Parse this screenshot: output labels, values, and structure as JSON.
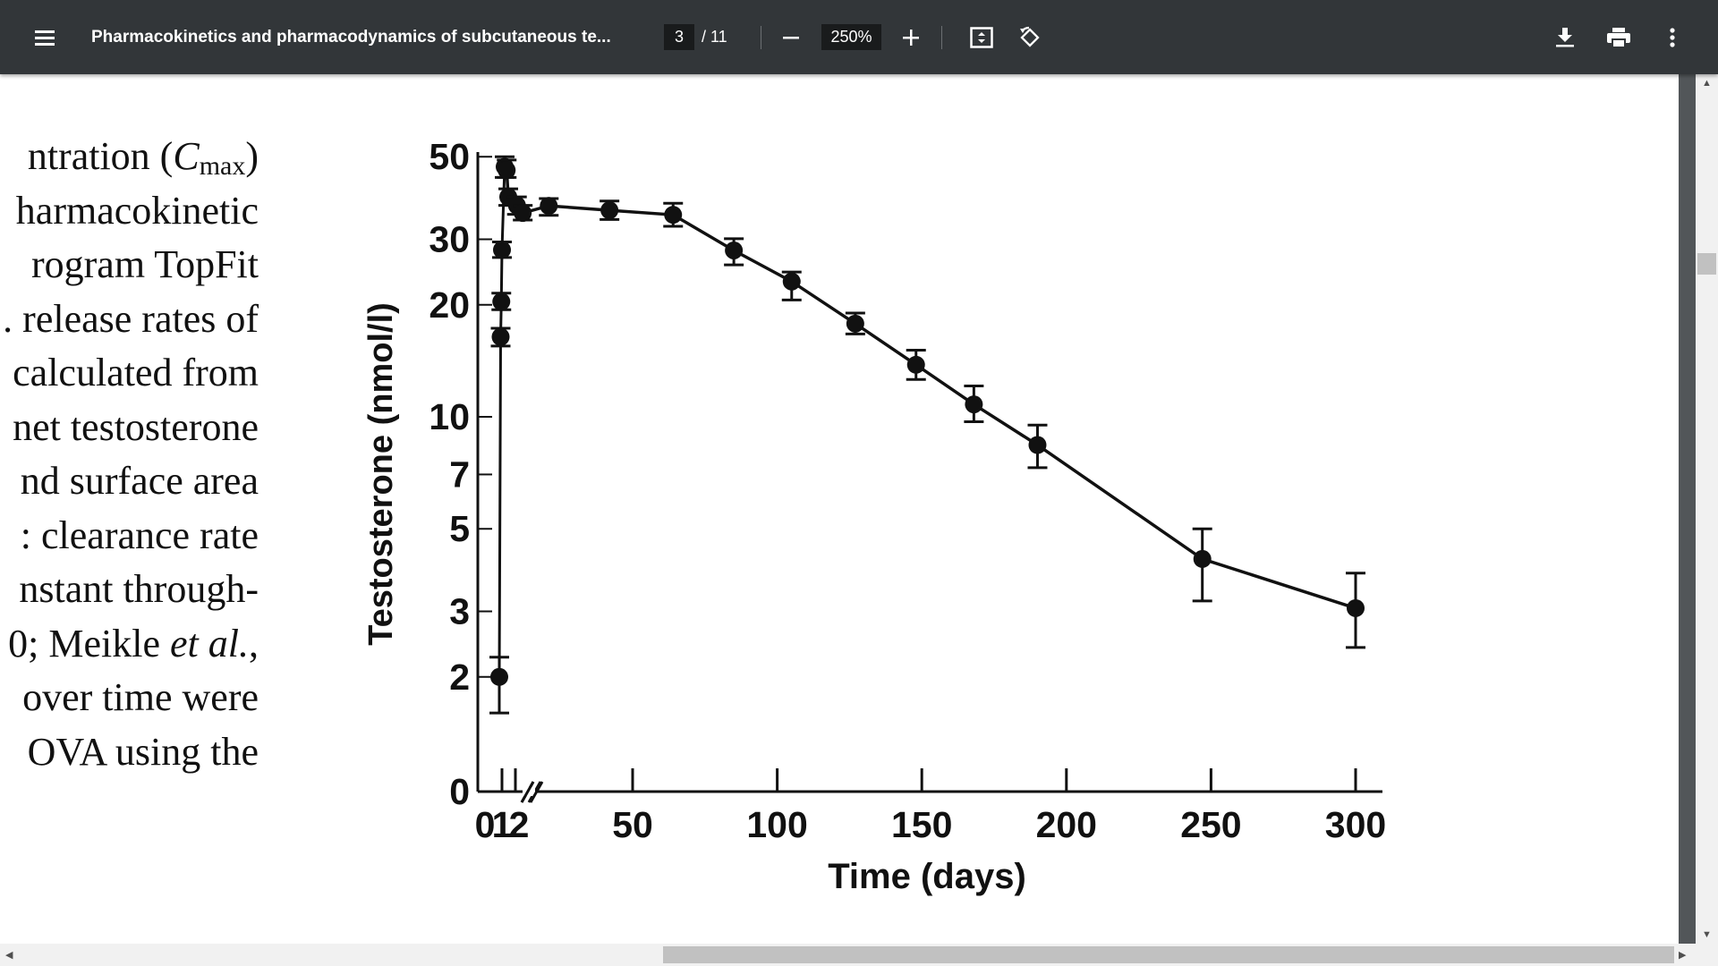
{
  "toolbar": {
    "title": "Pharmacokinetics and pharmacodynamics of subcutaneous te...",
    "current_page": "3",
    "total_pages": "/ 11",
    "zoom": "250%",
    "icons": [
      "menu-icon",
      "zoom-out-icon",
      "zoom-in-icon",
      "fit-page-icon",
      "rotate-icon",
      "download-icon",
      "print-icon",
      "more-icon"
    ]
  },
  "body_text": {
    "lines": [
      {
        "pre": "ntration  (",
        "italic": "C",
        "sub": "max",
        "post": ")"
      },
      {
        "pre": "harmacokinetic"
      },
      {
        "pre": "rogram TopFit"
      },
      {
        "pre": ". release rates of"
      },
      {
        "pre": "calculated from"
      },
      {
        "pre": "net testosterone"
      },
      {
        "pre": "nd surface area"
      },
      {
        "pre": ": clearance rate"
      },
      {
        "pre": "nstant through-"
      },
      {
        "pre": "0; Meikle ",
        "italic": "et al.",
        "post": ","
      },
      {
        "pre": "over time were"
      },
      {
        "pre": "OVA  using  the"
      }
    ]
  },
  "chart_data": {
    "type": "line",
    "title": "",
    "xlabel": "Time (days)",
    "ylabel": "Testosterone (nmol/l)",
    "yscale": "log",
    "ylim": [
      0,
      50
    ],
    "xlim": [
      0,
      300
    ],
    "x_axis_break": "after day 2",
    "x_ticks": [
      "0",
      "1",
      "2",
      "50",
      "100",
      "150",
      "200",
      "250",
      "300"
    ],
    "x_tick_values": [
      0,
      1,
      2,
      50,
      100,
      150,
      200,
      250,
      300
    ],
    "y_ticks": [
      "50",
      "30",
      "20",
      "10",
      "7",
      "5",
      "3",
      "2",
      "0"
    ],
    "y_tick_values": [
      50,
      30,
      20,
      10,
      7,
      5,
      3,
      2,
      0
    ],
    "series": [
      {
        "name": "Testosterone",
        "x": [
          0.8,
          0.9,
          0.95,
          1.0,
          1.2,
          1.35,
          7,
          10,
          12,
          21,
          42,
          64,
          85,
          105,
          127,
          148,
          168,
          190,
          247,
          300
        ],
        "y": [
          2.0,
          16.4,
          20.4,
          28.1,
          47,
          46,
          39,
          37,
          35.3,
          36.9,
          35.9,
          34.9,
          28,
          23.1,
          17.8,
          13.8,
          10.8,
          8.4,
          4.15,
          3.06
        ],
        "err_low": [
          1.6,
          15.5,
          19.4,
          26.8,
          44,
          44,
          37,
          35,
          33.8,
          34.8,
          33.9,
          32.5,
          25.6,
          20.6,
          16.7,
          12.6,
          9.7,
          7.3,
          3.2,
          2.4
        ],
        "err_high": [
          2.26,
          17.3,
          21.5,
          29.5,
          50,
          49,
          41,
          39,
          37,
          38.6,
          38,
          37.5,
          30.1,
          24.5,
          19,
          15.1,
          12.1,
          9.5,
          5.0,
          3.8
        ]
      }
    ]
  }
}
